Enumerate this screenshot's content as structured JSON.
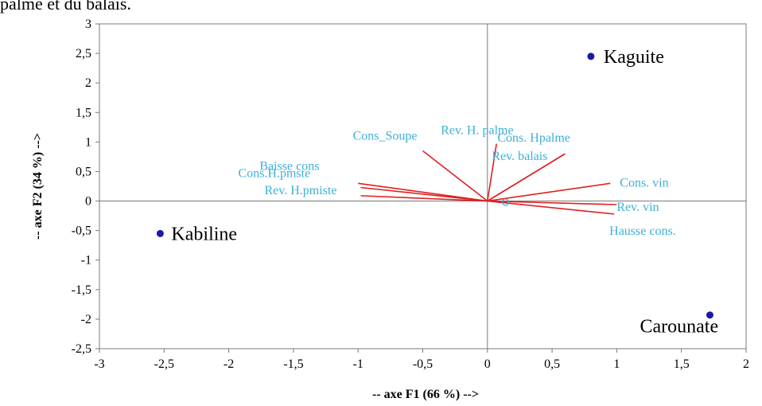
{
  "caption": "palme et du balais.",
  "chart_data": {
    "type": "scatter",
    "subtype": "biplot",
    "xlabel": "-- axe F1 (66 %) -->",
    "ylabel": "-- axe F2 (34 %) -->",
    "xlim": [
      -3,
      2
    ],
    "ylim": [
      -2.5,
      3
    ],
    "x_ticks": [
      "-3",
      "-2,5",
      "-2",
      "-1,5",
      "-1",
      "-0,5",
      "0",
      "0,5",
      "1",
      "1,5",
      "2"
    ],
    "y_ticks": [
      "3",
      "2,5",
      "2",
      "1,5",
      "1",
      "0,5",
      "0",
      "-0,5",
      "-1",
      "-1,5",
      "-2",
      "-2,5"
    ],
    "x_tick_values": [
      -3,
      -2.5,
      -2,
      -1.5,
      -1,
      -0.5,
      0,
      0.5,
      1,
      1.5,
      2
    ],
    "y_tick_values": [
      3,
      2.5,
      2,
      1.5,
      1,
      0.5,
      0,
      -0.5,
      -1,
      -1.5,
      -2,
      -2.5
    ],
    "grid": false,
    "observations": [
      {
        "label": "Kaguite",
        "x": 0.8,
        "y": 2.45
      },
      {
        "label": "Kabiline",
        "x": -2.53,
        "y": -0.55
      },
      {
        "label": "Carounate",
        "x": 1.72,
        "y": -1.93
      }
    ],
    "variables": [
      {
        "label": "Rev. H. palme",
        "x": 0.07,
        "y": 0.97
      },
      {
        "label": "Cons_Soupe",
        "x": -0.5,
        "y": 0.85
      },
      {
        "label": "Cons. Hpalme",
        "x": 0.6,
        "y": 0.8
      },
      {
        "label": "Rev. balais",
        "x": 0.6,
        "y": 0.8
      },
      {
        "label": "Cons.H.pmste",
        "x": -1.0,
        "y": 0.3
      },
      {
        "label": "Baisse cons",
        "x": -0.98,
        "y": 0.23
      },
      {
        "label": "Rev. H.pmiste",
        "x": -0.98,
        "y": 0.09
      },
      {
        "label": "Cons. vin",
        "x": 0.95,
        "y": 0.3
      },
      {
        "label": "Rev. vin",
        "x": 1.0,
        "y": -0.06
      },
      {
        "label": "Hausse cons.",
        "x": 0.98,
        "y": -0.22
      }
    ],
    "centroid_marker": {
      "x": 0.14,
      "y": -0.02
    },
    "colors": {
      "observation": "#1a1aa8",
      "vector": "#e02020",
      "variable_label": "#3cb0d8",
      "axis": "#7a7a7a"
    }
  }
}
